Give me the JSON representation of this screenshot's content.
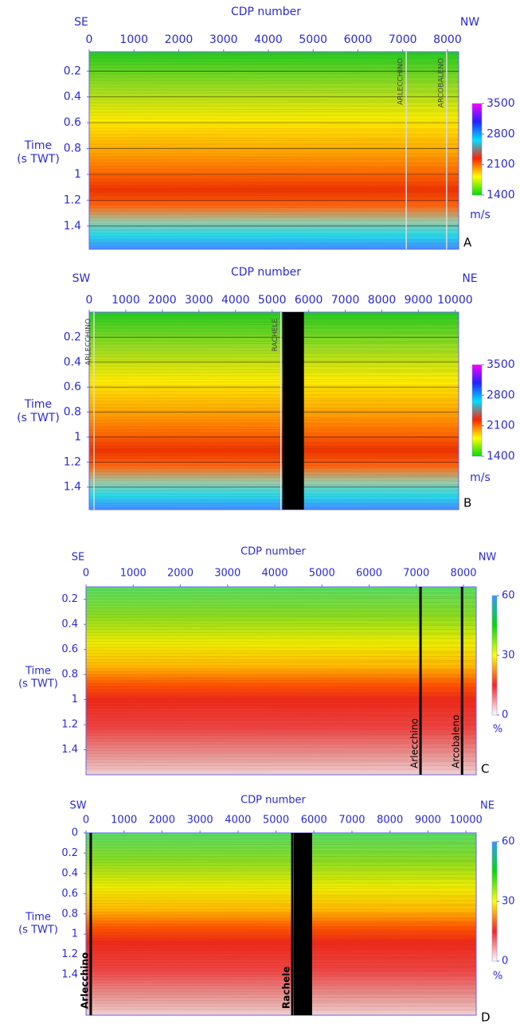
{
  "chart_data": [
    {
      "type": "heatmap",
      "panel_label": "A",
      "xlabel": "CDP number",
      "ylabel": [
        "Time",
        "(s TWT)"
      ],
      "left_label": "SE",
      "right_label": "NW",
      "xlim": [
        0,
        8250
      ],
      "xticks": [
        0,
        1000,
        2000,
        3000,
        4000,
        5000,
        6000,
        7000,
        8000
      ],
      "ylim": [
        0.05,
        1.58
      ],
      "yticks": [
        0.2,
        0.4,
        0.6,
        0.8,
        1,
        1.2,
        1.4
      ],
      "grid": true,
      "colorbar": {
        "clim": [
          1400,
          3500
        ],
        "ticks": [
          1400,
          2100,
          2800,
          3500
        ],
        "unit": "m/s",
        "colors": [
          "#00dd00",
          "#ffff00",
          "#ff2200",
          "#00e0ff",
          "#2222ff",
          "#ff00ff"
        ]
      },
      "wells": [
        {
          "name": "ARLECCHINO",
          "x": 7080
        },
        {
          "name": "ARCOBALENO",
          "x": 7980
        }
      ],
      "gaps": []
    },
    {
      "type": "heatmap",
      "panel_label": "B",
      "xlabel": "CDP number",
      "ylabel": [
        "Time",
        "(s TWT)"
      ],
      "left_label": "SW",
      "right_label": "NE",
      "xlim": [
        0,
        10100
      ],
      "xticks": [
        0,
        1000,
        2000,
        3000,
        4000,
        5000,
        6000,
        7000,
        8000,
        9000,
        10000
      ],
      "ylim": [
        0,
        1.58
      ],
      "yticks": [
        0.2,
        0.4,
        0.6,
        0.8,
        1,
        1.2,
        1.4
      ],
      "grid": true,
      "colorbar": {
        "clim": [
          1400,
          3500
        ],
        "ticks": [
          1400,
          2100,
          2800,
          3500
        ],
        "unit": "m/s",
        "colors": [
          "#00dd00",
          "#ffff00",
          "#ff2200",
          "#00e0ff",
          "#2222ff",
          "#ff00ff"
        ]
      },
      "wells": [
        {
          "name": "ARLECCHINO",
          "x": 130
        },
        {
          "name": "RACHELE",
          "x": 5240
        }
      ],
      "gaps": [
        [
          5280,
          5870
        ]
      ]
    },
    {
      "type": "heatmap",
      "panel_label": "C",
      "xlabel": "CDP number",
      "ylabel": [
        "Time",
        "(s TWT)"
      ],
      "left_label": "SE",
      "right_label": "NW",
      "xlim": [
        0,
        8270
      ],
      "xticks": [
        0,
        1000,
        2000,
        3000,
        4000,
        5000,
        6000,
        7000,
        8000
      ],
      "ylim": [
        0.1,
        1.6
      ],
      "yticks": [
        0.2,
        0.4,
        0.6,
        0.8,
        1,
        1.2,
        1.4
      ],
      "grid": false,
      "colorbar": {
        "clim": [
          0,
          60
        ],
        "ticks": [
          0,
          30,
          60
        ],
        "unit": "%",
        "colors": [
          "#ffffff",
          "#ff2020",
          "#ffff00",
          "#00dd00",
          "#3399ff"
        ]
      },
      "wells": [
        {
          "name": "Arlecchino",
          "x": 7090
        },
        {
          "name": "Arcobaleno",
          "x": 7970
        }
      ],
      "gaps": []
    },
    {
      "type": "heatmap",
      "panel_label": "D",
      "xlabel": "CDP number",
      "ylabel": [
        "Time",
        "(s TWT)"
      ],
      "left_label": "SW",
      "right_label": "NE",
      "xlim": [
        0,
        10270
      ],
      "xticks": [
        0,
        1000,
        2000,
        3000,
        4000,
        5000,
        6000,
        7000,
        8000,
        9000,
        10000
      ],
      "ylim": [
        0,
        1.8
      ],
      "yticks": [
        0,
        0.2,
        0.4,
        0.6,
        0.8,
        1,
        1.2,
        1.4
      ],
      "grid": false,
      "colorbar": {
        "clim": [
          0,
          60
        ],
        "ticks": [
          0,
          30,
          60
        ],
        "unit": "%",
        "colors": [
          "#ffffff",
          "#ff2020",
          "#ffff00",
          "#00dd00",
          "#3399ff"
        ]
      },
      "wells": [
        {
          "name": "Arlecchino",
          "x": 125
        },
        {
          "name": "Rachele",
          "x": 5430
        }
      ],
      "gaps": [
        [
          5470,
          5950
        ]
      ]
    }
  ]
}
